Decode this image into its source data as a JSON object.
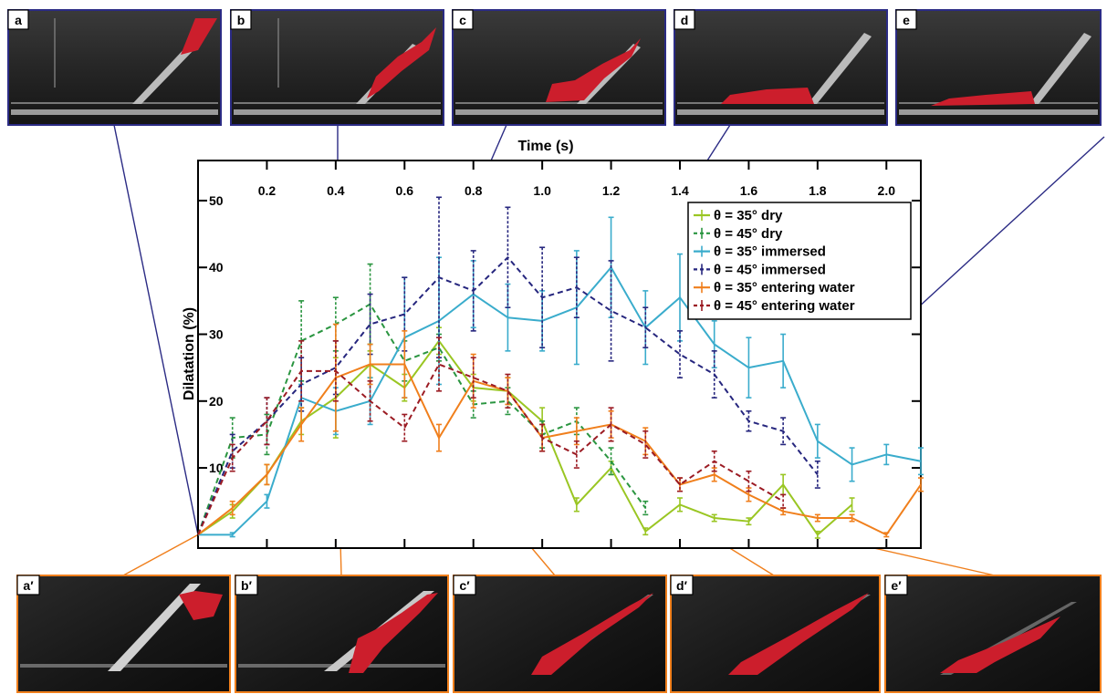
{
  "panels_top": [
    {
      "letter": "a"
    },
    {
      "letter": "b"
    },
    {
      "letter": "c"
    },
    {
      "letter": "d"
    },
    {
      "letter": "e"
    }
  ],
  "panels_bottom": [
    {
      "letter": "a′"
    },
    {
      "letter": "b′"
    },
    {
      "letter": "c′"
    },
    {
      "letter": "d′"
    },
    {
      "letter": "e′"
    }
  ],
  "colors": {
    "top_frame": "#2b2b84",
    "bottom_frame": "#f07f1c",
    "avalanche": "#cc1e2c"
  },
  "chart_data": {
    "type": "line",
    "xlabel": "Time (s)",
    "ylabel": "Dilatation (%)",
    "xlim": [
      0,
      2.1
    ],
    "ylim": [
      -2,
      56
    ],
    "x_ticks": [
      "0.2",
      "0.4",
      "0.6",
      "0.8",
      "1.0",
      "1.2",
      "1.4",
      "1.6",
      "1.8",
      "2.0"
    ],
    "y_ticks": [
      "10",
      "20",
      "30",
      "40",
      "50"
    ],
    "x_axis_position": "top",
    "grid": false,
    "legend_position": "top-right",
    "series": [
      {
        "name": "θ = 35° dry",
        "color": "#9ac623",
        "dashed": false,
        "x": [
          0,
          0.1,
          0.2,
          0.3,
          0.4,
          0.5,
          0.6,
          0.7,
          0.8,
          0.9,
          1.0,
          1.1,
          1.2,
          1.3,
          1.4,
          1.5,
          1.6,
          1.7,
          1.8,
          1.9
        ],
        "y": [
          0,
          3.5,
          9,
          17,
          20.5,
          25.5,
          22,
          29,
          22,
          21.5,
          17,
          4.5,
          10,
          0.5,
          4.5,
          2.5,
          2,
          7.5,
          0,
          4.5
        ],
        "err": [
          0,
          1,
          1.5,
          2,
          6,
          2,
          2,
          2,
          2,
          2,
          2,
          1,
          1,
          0.5,
          1,
          0.5,
          0.5,
          1.5,
          0.5,
          1
        ]
      },
      {
        "name": "θ = 45° dry",
        "color": "#2a9540",
        "dashed": true,
        "x": [
          0,
          0.1,
          0.2,
          0.3,
          0.4,
          0.5,
          0.6,
          0.7,
          0.8,
          0.9,
          1.0,
          1.1,
          1.2,
          1.3
        ],
        "y": [
          0,
          14.5,
          15,
          29,
          31.5,
          34.5,
          26,
          28,
          19.5,
          20,
          15,
          17,
          11,
          4
        ],
        "err": [
          0,
          3,
          3,
          6,
          4,
          6,
          3,
          2,
          2,
          2,
          2,
          2,
          2,
          1
        ]
      },
      {
        "name": "θ = 35° immersed",
        "color": "#3aaccc",
        "dashed": false,
        "x": [
          0,
          0.1,
          0.2,
          0.3,
          0.4,
          0.5,
          0.6,
          0.7,
          0.8,
          0.9,
          1.0,
          1.1,
          1.2,
          1.3,
          1.4,
          1.5,
          1.6,
          1.7,
          1.8,
          1.9,
          2.0,
          2.1
        ],
        "y": [
          0,
          0,
          5,
          20.5,
          18.5,
          20,
          29.5,
          32,
          36,
          32.5,
          32,
          34,
          40,
          31,
          35.5,
          28.5,
          25,
          26,
          14,
          10.5,
          12,
          11
        ],
        "err": [
          0,
          0.3,
          1,
          2,
          3.5,
          3.5,
          9,
          9.5,
          5,
          5,
          4.5,
          8.5,
          7.5,
          5.5,
          6.5,
          3.5,
          4.5,
          4,
          2.5,
          2.5,
          1.5,
          2
        ]
      },
      {
        "name": "θ = 45° immersed",
        "color": "#26267e",
        "dashed": true,
        "x": [
          0,
          0.1,
          0.2,
          0.3,
          0.4,
          0.5,
          0.6,
          0.7,
          0.8,
          0.9,
          1.0,
          1.1,
          1.2,
          1.3,
          1.4,
          1.5,
          1.6,
          1.7,
          1.8
        ],
        "y": [
          0,
          12.5,
          17,
          22.5,
          25,
          31.5,
          33,
          38.5,
          36.5,
          41.5,
          35.5,
          37,
          33.5,
          31,
          27,
          24,
          17,
          15.5,
          9
        ],
        "err": [
          0,
          2.5,
          3.5,
          4,
          4,
          4.5,
          5.5,
          12,
          6,
          7.5,
          7.5,
          4.5,
          7.5,
          3,
          3.5,
          3.5,
          1.5,
          2,
          2
        ]
      },
      {
        "name": "θ = 35° entering water",
        "color": "#f07f1c",
        "dashed": false,
        "x": [
          0,
          0.1,
          0.2,
          0.3,
          0.4,
          0.5,
          0.6,
          0.7,
          0.8,
          0.9,
          1.0,
          1.1,
          1.2,
          1.3,
          1.4,
          1.5,
          1.6,
          1.7,
          1.8,
          1.9,
          2.0,
          2.1
        ],
        "y": [
          0,
          4,
          9,
          16.5,
          23.5,
          25.5,
          25.5,
          14.5,
          23,
          21.5,
          14.5,
          15.5,
          16.5,
          14,
          7.5,
          9,
          6,
          3.5,
          2.5,
          2.5,
          0,
          7.5
        ],
        "err": [
          0,
          1,
          1.5,
          2.5,
          8,
          3,
          5,
          2,
          4,
          2,
          2,
          2,
          2,
          2,
          1,
          1,
          1,
          0.5,
          0.5,
          0.5,
          0.3,
          1
        ]
      },
      {
        "name": "θ = 45° entering water",
        "color": "#9b1b23",
        "dashed": true,
        "x": [
          0,
          0.1,
          0.2,
          0.3,
          0.4,
          0.5,
          0.6,
          0.7,
          0.8,
          0.9,
          1.0,
          1.1,
          1.2,
          1.3,
          1.4,
          1.5,
          1.6,
          1.7
        ],
        "y": [
          0,
          11.5,
          17,
          24.5,
          24.5,
          20,
          16,
          25.5,
          23.5,
          21.5,
          14.5,
          12,
          16.5,
          13.5,
          7.5,
          11,
          8,
          5
        ],
        "err": [
          0,
          2,
          3.5,
          4.5,
          4.5,
          3,
          2,
          4,
          3,
          2.5,
          2,
          2,
          2.5,
          2,
          1,
          1.5,
          1.5,
          1
        ]
      }
    ]
  }
}
